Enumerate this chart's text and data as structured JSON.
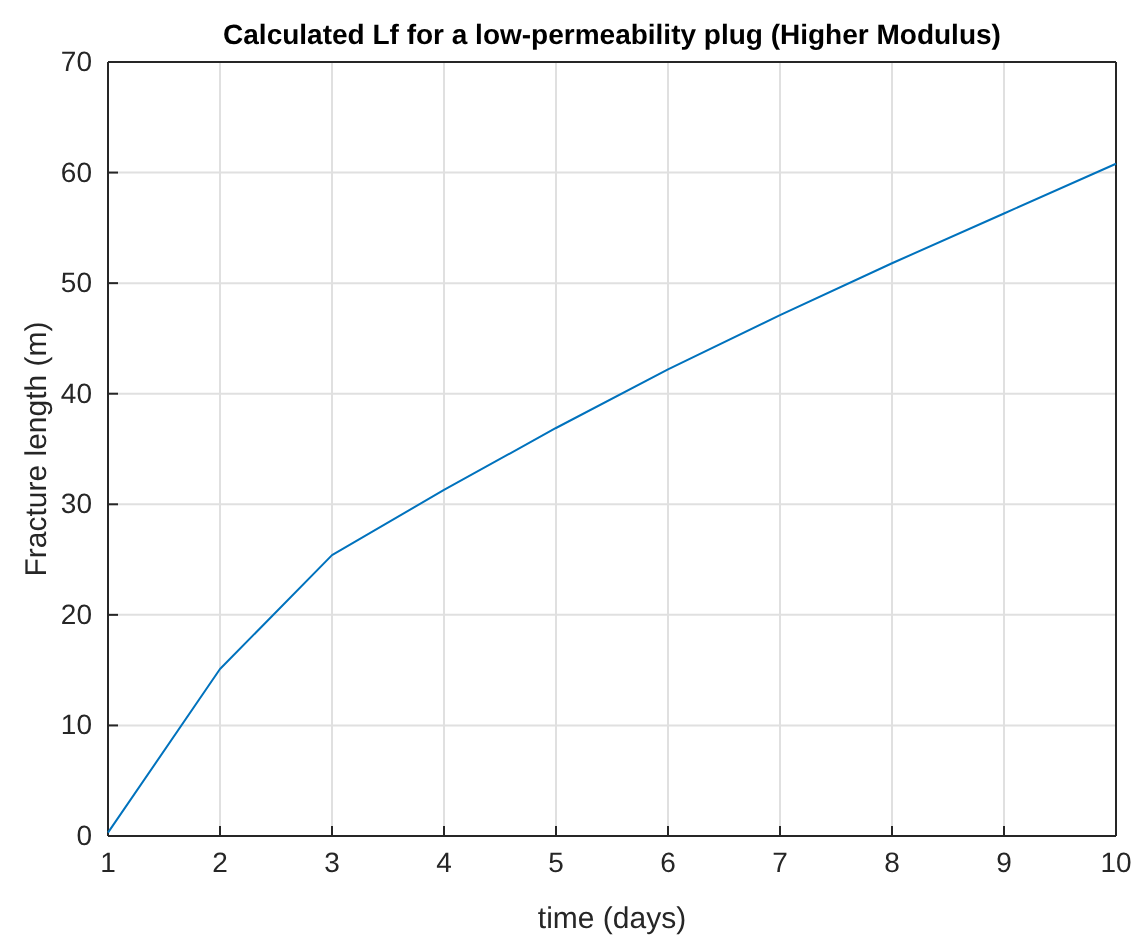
{
  "chart_data": {
    "type": "line",
    "title": "Calculated Lf for a low-permeability plug (Higher Modulus)",
    "xlabel": "time (days)",
    "ylabel": "Fracture length (m)",
    "x": [
      1,
      2,
      3,
      4,
      5,
      6,
      7,
      8,
      9,
      10
    ],
    "series": [
      {
        "color": "#0072bd",
        "values": [
          0.3,
          15.1,
          25.4,
          31.3,
          36.9,
          42.2,
          47.1,
          51.8,
          56.3,
          60.8
        ]
      }
    ],
    "xlim": [
      1,
      10
    ],
    "xticks": [
      1,
      2,
      3,
      4,
      5,
      6,
      7,
      8,
      9,
      10
    ],
    "ylim": [
      0,
      70
    ],
    "yticks": [
      0,
      10,
      20,
      30,
      40,
      50,
      60,
      70
    ],
    "grid": true,
    "marker": "none",
    "line_style": "solid"
  }
}
